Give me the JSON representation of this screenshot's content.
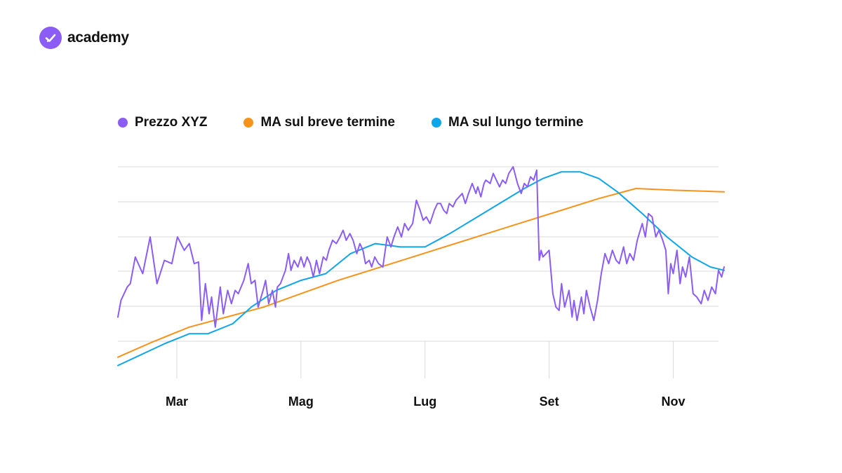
{
  "brand": {
    "name": "academy",
    "color": "#8B5CF6",
    "icon": "check-icon"
  },
  "colors": {
    "price": "#8B5CF6",
    "short_ma": "#F7931A",
    "long_ma": "#0EA5E9",
    "grid": "#DADADA"
  },
  "chart_data": {
    "type": "line",
    "title": "",
    "xlabel": "",
    "ylabel": "",
    "x_ticks": [
      {
        "label": "Mar",
        "x": 2
      },
      {
        "label": "Mag",
        "x": 4
      },
      {
        "label": "Lug",
        "x": 6
      },
      {
        "label": "Set",
        "x": 8
      },
      {
        "label": "Nov",
        "x": 10
      }
    ],
    "xlim": [
      1.05,
      10.82
    ],
    "ylim": [
      0,
      6
    ],
    "grid": true,
    "legend_position": "top-left",
    "y_axis_labels_visible": false,
    "series": [
      {
        "name": "Prezzo XYZ",
        "color": "#8B5CF6",
        "points": [
          [
            1.05,
            1.5
          ],
          [
            1.1,
            2
          ],
          [
            1.2,
            2.4
          ],
          [
            1.25,
            2.5
          ],
          [
            1.33,
            3.3
          ],
          [
            1.45,
            2.8
          ],
          [
            1.57,
            3.9
          ],
          [
            1.68,
            2.5
          ],
          [
            1.8,
            3.2
          ],
          [
            1.92,
            3.1
          ],
          [
            2.01,
            3.9
          ],
          [
            2.12,
            3.5
          ],
          [
            2.2,
            3.7
          ],
          [
            2.28,
            3.1
          ],
          [
            2.35,
            3.15
          ],
          [
            2.4,
            1.4
          ],
          [
            2.46,
            2.5
          ],
          [
            2.52,
            1.6
          ],
          [
            2.56,
            2.1
          ],
          [
            2.62,
            1.2
          ],
          [
            2.7,
            2.4
          ],
          [
            2.75,
            1.6
          ],
          [
            2.82,
            2.3
          ],
          [
            2.88,
            1.9
          ],
          [
            2.94,
            2.3
          ],
          [
            2.99,
            2.2
          ],
          [
            3.08,
            2.6
          ],
          [
            3.15,
            3.1
          ],
          [
            3.2,
            2.5
          ],
          [
            3.26,
            2.6
          ],
          [
            3.31,
            1.8
          ],
          [
            3.39,
            2.3
          ],
          [
            3.43,
            2.6
          ],
          [
            3.48,
            1.9
          ],
          [
            3.54,
            2.3
          ],
          [
            3.59,
            1.8
          ],
          [
            3.62,
            2.4
          ],
          [
            3.67,
            2.5
          ],
          [
            3.75,
            2.9
          ],
          [
            3.8,
            3.4
          ],
          [
            3.84,
            2.9
          ],
          [
            3.89,
            3.2
          ],
          [
            3.95,
            3.0
          ],
          [
            4.0,
            3.3
          ],
          [
            4.05,
            3.0
          ],
          [
            4.1,
            3.3
          ],
          [
            4.15,
            3.1
          ],
          [
            4.2,
            2.7
          ],
          [
            4.25,
            3.2
          ],
          [
            4.3,
            2.8
          ],
          [
            4.36,
            3.3
          ],
          [
            4.41,
            3.2
          ],
          [
            4.45,
            3.5
          ],
          [
            4.51,
            3.8
          ],
          [
            4.57,
            3.7
          ],
          [
            4.63,
            3.9
          ],
          [
            4.68,
            4.1
          ],
          [
            4.73,
            3.8
          ],
          [
            4.79,
            4.0
          ],
          [
            4.84,
            3.8
          ],
          [
            4.9,
            3.4
          ],
          [
            4.95,
            3.7
          ],
          [
            5.0,
            3.5
          ],
          [
            5.04,
            3.1
          ],
          [
            5.1,
            3.2
          ],
          [
            5.14,
            3.0
          ],
          [
            5.19,
            3.3
          ],
          [
            5.25,
            3.1
          ],
          [
            5.32,
            3.0
          ],
          [
            5.39,
            3.9
          ],
          [
            5.45,
            3.6
          ],
          [
            5.5,
            3.9
          ],
          [
            5.56,
            4.2
          ],
          [
            5.62,
            3.9
          ],
          [
            5.67,
            4.3
          ],
          [
            5.73,
            4.1
          ],
          [
            5.8,
            4.3
          ],
          [
            5.86,
            5.0
          ],
          [
            5.92,
            4.7
          ],
          [
            5.97,
            4.4
          ],
          [
            6.02,
            4.5
          ],
          [
            6.08,
            4.3
          ],
          [
            6.15,
            4.7
          ],
          [
            6.2,
            4.9
          ],
          [
            6.25,
            4.9
          ],
          [
            6.3,
            4.7
          ],
          [
            6.35,
            4.6
          ],
          [
            6.39,
            4.9
          ],
          [
            6.45,
            4.8
          ],
          [
            6.5,
            5.0
          ],
          [
            6.55,
            5.1
          ],
          [
            6.6,
            5.2
          ],
          [
            6.65,
            4.9
          ],
          [
            6.7,
            5.2
          ],
          [
            6.76,
            5.5
          ],
          [
            6.82,
            5.2
          ],
          [
            6.85,
            5.4
          ],
          [
            6.9,
            5.1
          ],
          [
            6.95,
            5.5
          ],
          [
            6.98,
            5.6
          ],
          [
            7.05,
            5.5
          ],
          [
            7.1,
            5.8
          ],
          [
            7.15,
            5.6
          ],
          [
            7.2,
            5.4
          ],
          [
            7.25,
            5.6
          ],
          [
            7.3,
            5.5
          ],
          [
            7.35,
            5.8
          ],
          [
            7.42,
            6.0
          ],
          [
            7.49,
            5.5
          ],
          [
            7.55,
            5.2
          ],
          [
            7.6,
            5.5
          ],
          [
            7.65,
            5.4
          ],
          [
            7.7,
            5.7
          ],
          [
            7.75,
            5.6
          ],
          [
            7.8,
            5.9
          ],
          [
            7.84,
            3.2
          ],
          [
            7.87,
            3.5
          ],
          [
            7.9,
            3.3
          ],
          [
            7.95,
            3.4
          ],
          [
            8.0,
            3.5
          ],
          [
            8.06,
            2.2
          ],
          [
            8.11,
            1.8
          ],
          [
            8.16,
            1.7
          ],
          [
            8.2,
            2.5
          ],
          [
            8.25,
            1.8
          ],
          [
            8.32,
            2.3
          ],
          [
            8.37,
            1.5
          ],
          [
            8.4,
            2.0
          ],
          [
            8.45,
            1.4
          ],
          [
            8.52,
            2.1
          ],
          [
            8.56,
            1.6
          ],
          [
            8.6,
            2.3
          ],
          [
            8.66,
            1.8
          ],
          [
            8.72,
            1.4
          ],
          [
            8.78,
            2.0
          ],
          [
            8.84,
            2.8
          ],
          [
            8.9,
            3.4
          ],
          [
            8.96,
            3.1
          ],
          [
            9.02,
            3.5
          ],
          [
            9.08,
            3.2
          ],
          [
            9.13,
            3.1
          ],
          [
            9.2,
            3.6
          ],
          [
            9.25,
            3.1
          ],
          [
            9.3,
            3.4
          ],
          [
            9.36,
            3.2
          ],
          [
            9.42,
            3.8
          ],
          [
            9.5,
            4.3
          ],
          [
            9.55,
            3.9
          ],
          [
            9.6,
            4.6
          ],
          [
            9.66,
            4.5
          ],
          [
            9.72,
            3.9
          ],
          [
            9.77,
            4.1
          ],
          [
            9.83,
            3.8
          ],
          [
            9.88,
            3.5
          ],
          [
            9.92,
            2.2
          ],
          [
            9.96,
            3.1
          ],
          [
            10.0,
            2.8
          ],
          [
            10.06,
            3.5
          ],
          [
            10.11,
            2.5
          ],
          [
            10.15,
            3.0
          ],
          [
            10.2,
            2.7
          ],
          [
            10.26,
            3.3
          ],
          [
            10.32,
            2.2
          ],
          [
            10.38,
            2.1
          ],
          [
            10.45,
            1.9
          ],
          [
            10.5,
            2.3
          ],
          [
            10.56,
            2.0
          ],
          [
            10.62,
            2.4
          ],
          [
            10.68,
            2.2
          ],
          [
            10.73,
            2.9
          ],
          [
            10.78,
            2.7
          ],
          [
            10.82,
            3.0
          ]
        ]
      },
      {
        "name": "MA sul breve termine",
        "color": "#F7931A",
        "points": [
          [
            1.05,
            0.3
          ],
          [
            1.6,
            0.75
          ],
          [
            2.2,
            1.2
          ],
          [
            2.8,
            1.5
          ],
          [
            3.4,
            1.8
          ],
          [
            4.0,
            2.2
          ],
          [
            4.6,
            2.6
          ],
          [
            5.2,
            2.95
          ],
          [
            5.8,
            3.3
          ],
          [
            6.4,
            3.65
          ],
          [
            7.0,
            4.0
          ],
          [
            7.6,
            4.35
          ],
          [
            8.2,
            4.7
          ],
          [
            8.8,
            5.05
          ],
          [
            9.3,
            5.3
          ],
          [
            9.4,
            5.35
          ],
          [
            10.0,
            5.3
          ],
          [
            10.82,
            5.25
          ]
        ]
      },
      {
        "name": "MA sul lungo termine",
        "color": "#0EA5E9",
        "points": [
          [
            1.05,
            0.05
          ],
          [
            1.8,
            0.7
          ],
          [
            2.2,
            1.0
          ],
          [
            2.5,
            1.0
          ],
          [
            2.9,
            1.3
          ],
          [
            3.2,
            1.8
          ],
          [
            3.6,
            2.3
          ],
          [
            4.0,
            2.6
          ],
          [
            4.4,
            2.8
          ],
          [
            4.8,
            3.4
          ],
          [
            5.2,
            3.7
          ],
          [
            5.6,
            3.6
          ],
          [
            6.0,
            3.6
          ],
          [
            6.4,
            4.0
          ],
          [
            6.8,
            4.45
          ],
          [
            7.2,
            4.9
          ],
          [
            7.6,
            5.35
          ],
          [
            7.9,
            5.65
          ],
          [
            8.2,
            5.85
          ],
          [
            8.5,
            5.85
          ],
          [
            8.8,
            5.65
          ],
          [
            9.1,
            5.25
          ],
          [
            9.5,
            4.6
          ],
          [
            9.9,
            3.9
          ],
          [
            10.3,
            3.3
          ],
          [
            10.6,
            3.0
          ],
          [
            10.82,
            2.9
          ]
        ]
      }
    ]
  }
}
